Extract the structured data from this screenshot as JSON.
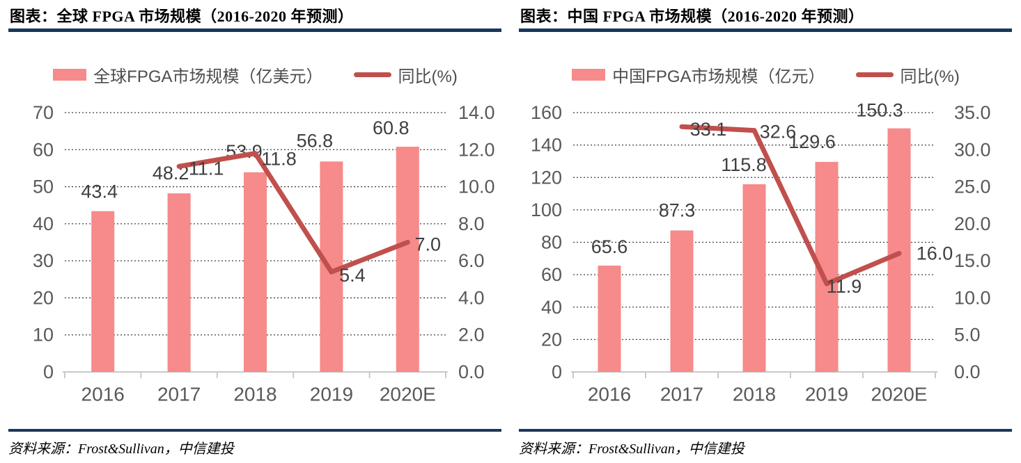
{
  "colors": {
    "bar": "#F78A8A",
    "line": "#C0504D",
    "rule": "#17375E",
    "axis_text": "#595959",
    "label_text": "#3F3F3F",
    "axis_line": "#C9C9C9",
    "grid": "#3F3F3F",
    "title_text": "#000000"
  },
  "panels": [
    {
      "title": "图表：全球 FPGA 市场规模（2016-2020 年预测）",
      "source": "资料来源：Frost&Sullivan，中信建投"
    },
    {
      "title": "图表：中国 FPGA 市场规模（2016-2020 年预测）",
      "source": "资料来源：Frost&Sullivan，中信建投"
    }
  ],
  "chart_data": [
    {
      "type": "bar+line combo",
      "categories": [
        "2016",
        "2017",
        "2018",
        "2019",
        "2020E"
      ],
      "series": [
        {
          "name": "全球FPGA市场规模（亿美元）",
          "type": "bar",
          "axis": "left",
          "values": [
            43.4,
            48.2,
            53.9,
            56.8,
            60.8
          ],
          "label_offsets": [
            [
              -5,
              -28
            ],
            [
              -12,
              -29
            ],
            [
              -16,
              -30
            ],
            [
              -24,
              -30
            ],
            [
              -24,
              -27
            ]
          ]
        },
        {
          "name": "同比(%)",
          "type": "line",
          "axis": "right",
          "values": [
            null,
            11.1,
            11.8,
            5.4,
            7.0
          ],
          "label_offsets": [
            null,
            [
              39,
              3
            ],
            [
              34,
              8
            ],
            [
              30,
              5
            ],
            [
              29,
              3
            ]
          ]
        }
      ],
      "left_axis": {
        "min": 0,
        "max": 70,
        "step": 10,
        "decimals": 0
      },
      "right_axis": {
        "min": 0,
        "max": 14,
        "step": 2,
        "decimals": 1
      },
      "grid": "horizontal dotted",
      "legend_position": "top"
    },
    {
      "type": "bar+line combo",
      "categories": [
        "2016",
        "2017",
        "2018",
        "2019",
        "2020E"
      ],
      "series": [
        {
          "name": "中国FPGA市场规模（亿元）",
          "type": "bar",
          "axis": "left",
          "values": [
            65.6,
            87.3,
            115.8,
            129.6,
            150.3
          ],
          "label_offsets": [
            [
              0,
              -27
            ],
            [
              -7,
              -29
            ],
            [
              -15,
              -28
            ],
            [
              -21,
              -29
            ],
            [
              -28,
              -26
            ]
          ]
        },
        {
          "name": "同比(%)",
          "type": "line",
          "axis": "right",
          "values": [
            null,
            33.1,
            32.6,
            11.9,
            16.0
          ],
          "label_offsets": [
            null,
            [
              38,
              4
            ],
            [
              34,
              2
            ],
            [
              25,
              4
            ],
            [
              51,
              0
            ]
          ]
        }
      ],
      "left_axis": {
        "min": 0,
        "max": 160,
        "step": 20,
        "decimals": 0
      },
      "right_axis": {
        "min": 0,
        "max": 35,
        "step": 5,
        "decimals": 1
      },
      "grid": "horizontal dotted",
      "legend_position": "top"
    }
  ]
}
